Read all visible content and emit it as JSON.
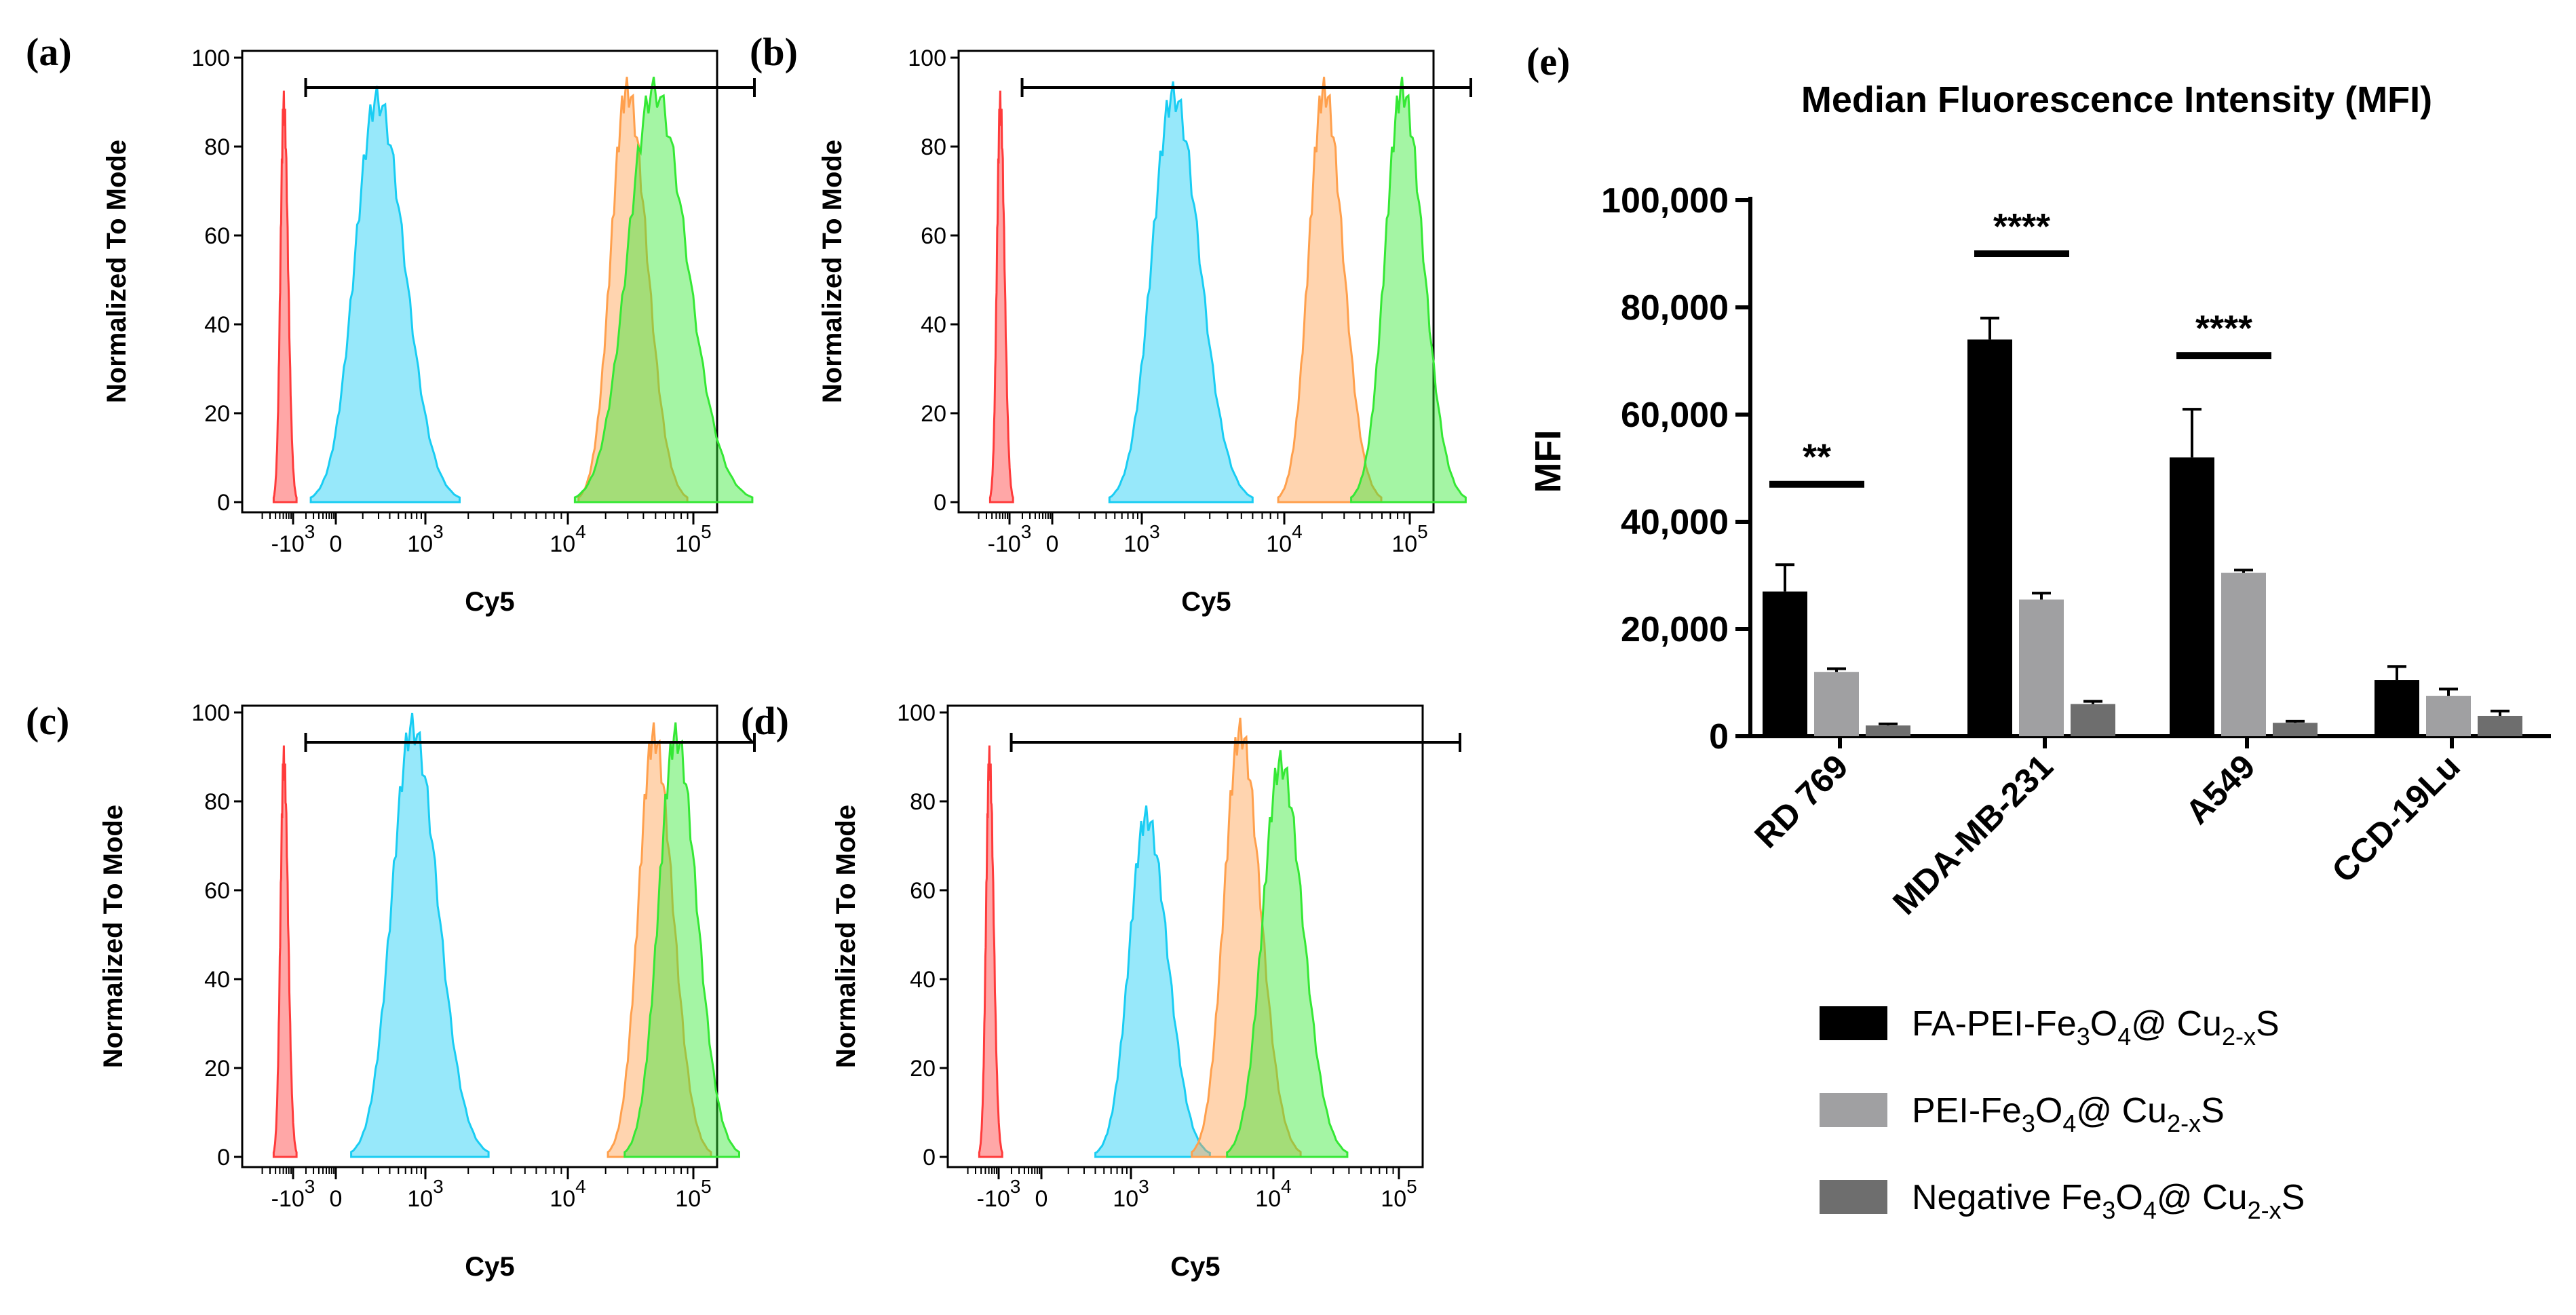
{
  "histogram_panels": [
    {
      "id": "a",
      "panel_label": "(a)",
      "ylabel": "Normalized To Mode",
      "xlabel": "Cy5",
      "y_ticks": [
        "0",
        "20",
        "40",
        "60",
        "80",
        "100"
      ],
      "x_ticks": [
        {
          "base": "-10",
          "exp": "3"
        },
        {
          "base": "0",
          "exp": ""
        },
        {
          "base": "10",
          "exp": "3"
        },
        {
          "base": "10",
          "exp": "4"
        },
        {
          "base": "10",
          "exp": "5"
        }
      ],
      "gate": {
        "start": 150,
        "end": 5500
      },
      "peaks": [
        {
          "color": "#ff3b3b",
          "peak_pos": -110,
          "height": 89,
          "width": 8
        },
        {
          "color": "#19cdf3",
          "peak_pos": 1000,
          "height": 90,
          "width": 52
        },
        {
          "color": "#ffa04d",
          "peak_pos": 3980,
          "height": 92,
          "width": 38
        },
        {
          "color": "#35e835",
          "peak_pos": 4300,
          "height": 92,
          "width": 62
        }
      ]
    },
    {
      "id": "b",
      "panel_label": "(b)",
      "ylabel": "Normalized To Mode",
      "xlabel": "Cy5",
      "y_ticks": [
        "0",
        "20",
        "40",
        "60",
        "80",
        "100"
      ],
      "x_ticks": [
        {
          "base": "-10",
          "exp": "3"
        },
        {
          "base": "0",
          "exp": ""
        },
        {
          "base": "10",
          "exp": "3"
        },
        {
          "base": "10",
          "exp": "4"
        },
        {
          "base": "10",
          "exp": "5"
        }
      ],
      "gate": {
        "start": 150,
        "end": 5500
      },
      "peaks": [
        {
          "color": "#ff3b3b",
          "peak_pos": -110,
          "height": 89,
          "width": 8
        },
        {
          "color": "#19cdf3",
          "peak_pos": 1950,
          "height": 91,
          "width": 50
        },
        {
          "color": "#ffa04d",
          "peak_pos": 3750,
          "height": 92,
          "width": 36
        },
        {
          "color": "#35e835",
          "peak_pos": 4680,
          "height": 92,
          "width": 40
        }
      ]
    },
    {
      "id": "c",
      "panel_label": "(c)",
      "ylabel": "Normalized To Mode",
      "xlabel": "Cy5",
      "y_ticks": [
        "0",
        "20",
        "40",
        "60",
        "80",
        "100"
      ],
      "x_ticks": [
        {
          "base": "-10",
          "exp": "3"
        },
        {
          "base": "0",
          "exp": ""
        },
        {
          "base": "10",
          "exp": "3"
        },
        {
          "base": "10",
          "exp": "4"
        },
        {
          "base": "10",
          "exp": "5"
        }
      ],
      "gate": {
        "start": 150,
        "end": 5500
      },
      "peaks": [
        {
          "color": "#ff3b3b",
          "peak_pos": -110,
          "height": 89,
          "width": 8
        },
        {
          "color": "#19cdf3",
          "peak_pos": 1420,
          "height": 96,
          "width": 48
        },
        {
          "color": "#ffa04d",
          "peak_pos": 4300,
          "height": 94,
          "width": 36
        },
        {
          "color": "#35e835",
          "peak_pos": 4560,
          "height": 94,
          "width": 40
        }
      ]
    },
    {
      "id": "d",
      "panel_label": "(d)",
      "ylabel": "Normalized To Mode",
      "xlabel": "Cy5",
      "y_ticks": [
        "0",
        "20",
        "40",
        "60",
        "80",
        "100"
      ],
      "x_ticks": [
        {
          "base": "-10",
          "exp": "3"
        },
        {
          "base": "0",
          "exp": ""
        },
        {
          "base": "10",
          "exp": "3"
        },
        {
          "base": "10",
          "exp": "4"
        },
        {
          "base": "10",
          "exp": "5"
        }
      ],
      "gate": {
        "start": 150,
        "end": 5500
      },
      "peaks": [
        {
          "color": "#ff3b3b",
          "peak_pos": -110,
          "height": 89,
          "width": 8
        },
        {
          "color": "#19cdf3",
          "peak_pos": 1760,
          "height": 76,
          "width": 40
        },
        {
          "color": "#ffa04d",
          "peak_pos": 2880,
          "height": 95,
          "width": 38
        },
        {
          "color": "#35e835",
          "peak_pos": 3360,
          "height": 88,
          "width": 42
        }
      ]
    }
  ],
  "chart_data": {
    "type": "bar",
    "panel_label": "(e)",
    "title": "Median Fluorescence Intensity (MFI)",
    "ylabel": "MFI",
    "ylim": [
      0,
      100000
    ],
    "y_ticks": [
      "0",
      "20,000",
      "40,000",
      "60,000",
      "80,000",
      "100,000"
    ],
    "categories": [
      "RD 769",
      "MDA-MB-231",
      "A549",
      "CCD-19Lu"
    ],
    "series": [
      {
        "name_parts": [
          "FA-PEI-Fe",
          "3",
          "O",
          "4",
          "@ Cu",
          "2-x",
          "S"
        ],
        "color": "#000000",
        "values": [
          27000,
          74000,
          52000,
          10500
        ],
        "errors": [
          5000,
          4000,
          9000,
          2500
        ]
      },
      {
        "name_parts": [
          "PEI-Fe",
          "3",
          "O",
          "4",
          "@ Cu",
          "2-x",
          "S"
        ],
        "color": "#a0a0a2",
        "values": [
          12000,
          25500,
          30500,
          7500
        ],
        "errors": [
          600,
          1200,
          500,
          1300
        ]
      },
      {
        "name_parts": [
          "Negative Fe",
          "3",
          "O",
          "4",
          "@ Cu",
          "2-x",
          "S"
        ],
        "color": "#6e6e6e",
        "values": [
          2000,
          6000,
          2500,
          3800
        ],
        "errors": [
          300,
          500,
          300,
          900
        ]
      }
    ],
    "significance": [
      {
        "category_index": 0,
        "label": "**",
        "bar_value": 47000
      },
      {
        "category_index": 1,
        "label": "****",
        "bar_value": 90000
      },
      {
        "category_index": 2,
        "label": "****",
        "bar_value": 71000
      }
    ]
  }
}
